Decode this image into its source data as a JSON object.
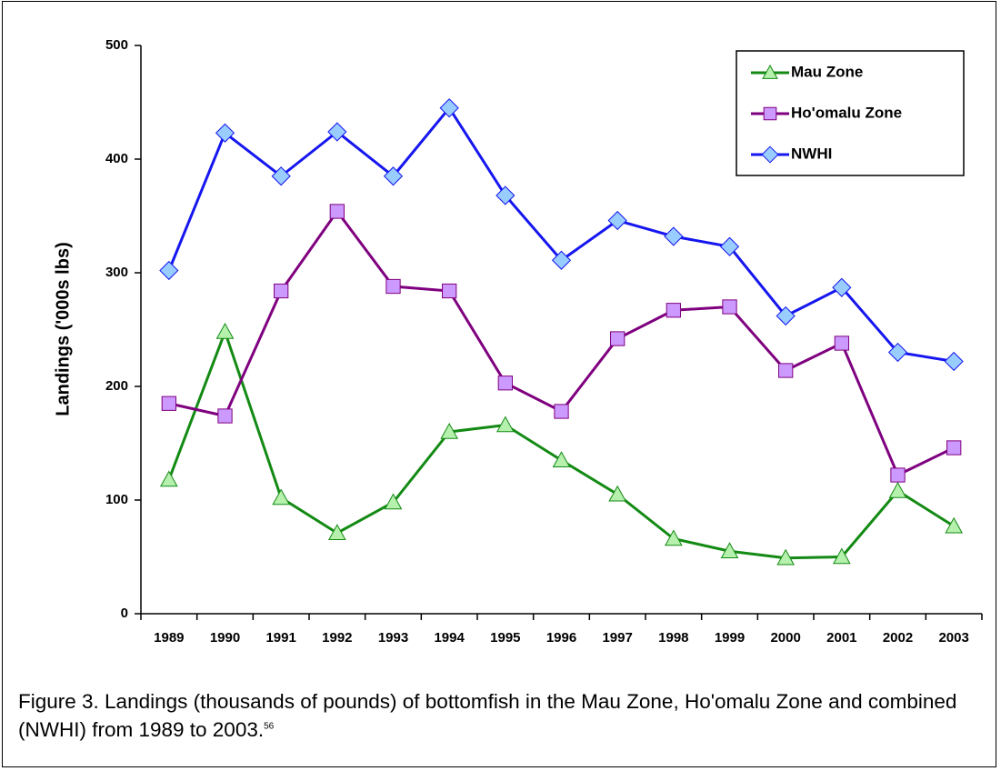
{
  "chart_data": {
    "type": "line",
    "y_label": "Landings ('000s lbs)",
    "categories": [
      "1989",
      "1990",
      "1991",
      "1992",
      "1993",
      "1994",
      "1995",
      "1996",
      "1997",
      "1998",
      "1999",
      "2000",
      "2001",
      "2002",
      "2003"
    ],
    "series": [
      {
        "name": "Mau Zone",
        "color": "#138a13",
        "marker_fill": "#b5f0ad",
        "marker": "triangle",
        "values": [
          118,
          248,
          102,
          71,
          98,
          160,
          166,
          135,
          105,
          66,
          55,
          49,
          50,
          108,
          77
        ]
      },
      {
        "name": "Ho'omalu Zone",
        "color": "#7f007f",
        "marker_fill": "#cc99ff",
        "marker": "square",
        "values": [
          185,
          174,
          284,
          354,
          288,
          284,
          203,
          178,
          242,
          267,
          270,
          214,
          238,
          122,
          146
        ]
      },
      {
        "name": "NWHI",
        "color": "#1616f0",
        "marker_fill": "#99ccff",
        "marker": "diamond",
        "values": [
          302,
          423,
          385,
          424,
          385,
          445,
          368,
          311,
          346,
          332,
          323,
          262,
          287,
          230,
          222
        ]
      }
    ],
    "ylim": [
      0,
      500
    ],
    "yticks": [
      0,
      100,
      200,
      300,
      400,
      500
    ],
    "legend": "top-right",
    "grid": false
  },
  "caption": {
    "text": "Figure 3.  Landings (thousands of pounds) of bottomfish in the Mau Zone, Ho'omalu Zone and combined (NWHI) from 1989 to 2003.",
    "note": "56"
  }
}
